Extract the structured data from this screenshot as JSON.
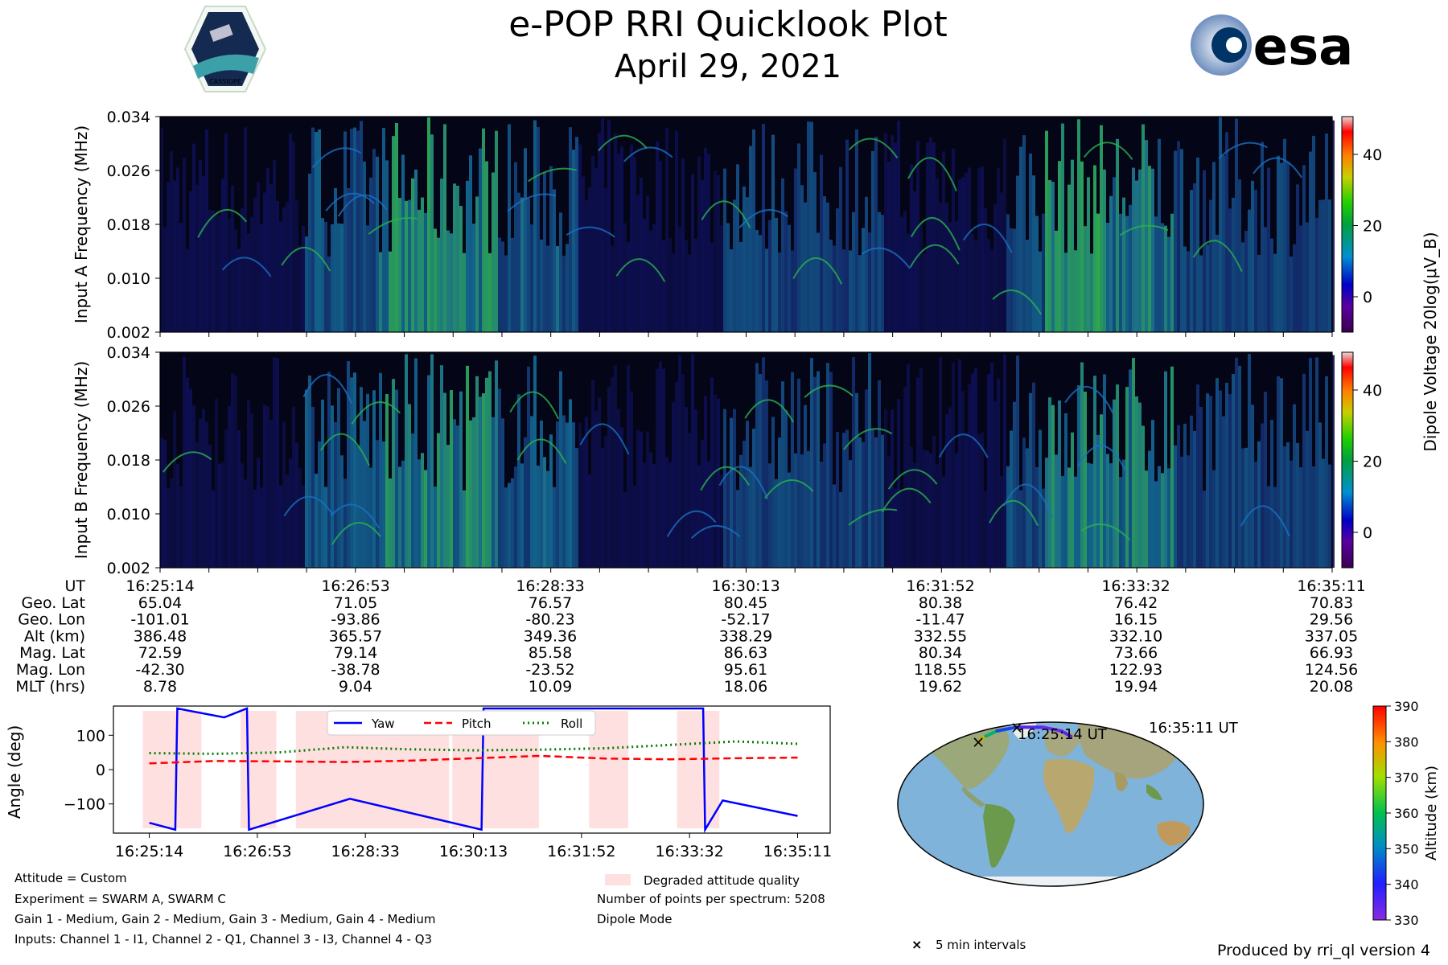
{
  "header": {
    "title": "e-POP RRI Quicklook Plot",
    "date": "April 29, 2021",
    "left_logo_text": "CASSIOPE",
    "right_logo_text": "esa"
  },
  "spectrogram": {
    "ylabel_a": "Input A Frequency (MHz)",
    "ylabel_b": "Input B Frequency (MHz)",
    "freq_ticks": [
      "0.034",
      "0.026",
      "0.018",
      "0.010",
      "0.002"
    ],
    "colorbar_ticks": [
      "40",
      "20",
      "0"
    ],
    "colorbar_label": "Dipole Voltage 20log(μV_B)"
  },
  "ephemeris": {
    "row_labels": [
      "UT",
      "Geo. Lat",
      "Geo. Lon",
      "Alt (km)",
      "Mag. Lat",
      "Mag. Lon",
      "MLT (hrs)"
    ],
    "columns": [
      [
        "16:25:14",
        "65.04",
        "-101.01",
        "386.48",
        "72.59",
        "-42.30",
        "8.78"
      ],
      [
        "16:26:53",
        "71.05",
        "-93.86",
        "365.57",
        "79.14",
        "-38.78",
        "9.04"
      ],
      [
        "16:28:33",
        "76.57",
        "-80.23",
        "349.36",
        "85.58",
        "-23.52",
        "10.09"
      ],
      [
        "16:30:13",
        "80.45",
        "-52.17",
        "338.29",
        "86.63",
        "95.61",
        "18.06"
      ],
      [
        "16:31:52",
        "80.38",
        "-11.47",
        "332.55",
        "80.34",
        "118.55",
        "19.62"
      ],
      [
        "16:33:32",
        "76.42",
        "16.15",
        "332.10",
        "73.66",
        "122.93",
        "19.94"
      ],
      [
        "16:35:11",
        "70.83",
        "29.56",
        "337.05",
        "66.93",
        "124.56",
        "20.08"
      ]
    ]
  },
  "chart_data": [
    {
      "type": "line",
      "title": "",
      "xlabel": "",
      "ylabel": "Angle (deg)",
      "categories": [
        "16:25:14",
        "16:26:53",
        "16:28:33",
        "16:30:13",
        "16:31:52",
        "16:33:32",
        "16:35:11"
      ],
      "x_unit": "minutes since 16:25:14",
      "xlim": [
        0,
        9.95
      ],
      "ylim": [
        -185,
        185
      ],
      "yticks": [
        "100",
        "0",
        "−100"
      ],
      "series": [
        {
          "name": "Yaw",
          "color": "#0000ff",
          "style": "solid",
          "x": [
            0,
            0.4,
            0.43,
            1.15,
            1.5,
            1.53,
            3.08,
            5.1,
            5.13,
            8.5,
            8.53,
            8.8,
            9.95
          ],
          "values": [
            -155,
            -175,
            178,
            152,
            178,
            -175,
            -85,
            -175,
            178,
            178,
            -175,
            -90,
            -135
          ]
        },
        {
          "name": "Pitch",
          "color": "#ff0000",
          "style": "dashed",
          "x": [
            0,
            1.0,
            2.0,
            3.0,
            4.0,
            5.0,
            6.0,
            7.0,
            8.0,
            9.0,
            9.95
          ],
          "values": [
            18,
            25,
            24,
            22,
            26,
            33,
            40,
            32,
            30,
            33,
            35
          ]
        },
        {
          "name": "Roll",
          "color": "#007f00",
          "style": "dotted",
          "x": [
            0,
            1.0,
            2.0,
            3.0,
            4.0,
            5.0,
            6.0,
            7.0,
            8.0,
            9.0,
            9.95
          ],
          "values": [
            48,
            46,
            50,
            65,
            59,
            56,
            58,
            62,
            72,
            82,
            75
          ]
        }
      ],
      "degraded_intervals": [
        [
          -0.1,
          0.8
        ],
        [
          1.4,
          1.95
        ],
        [
          2.25,
          4.6
        ],
        [
          4.65,
          5.98
        ],
        [
          6.75,
          7.35
        ],
        [
          8.1,
          8.75
        ]
      ],
      "degraded_color": "#ffe0e0"
    },
    {
      "type": "scatter",
      "title": "",
      "xlabel": "",
      "ylabel": "Altitude (km)",
      "colorbar_range": [
        330,
        390
      ],
      "colorbar_ticks": [
        "390",
        "380",
        "370",
        "360",
        "350",
        "340",
        "330"
      ],
      "track_start_label": "16:25:14 UT",
      "track_end_label": "16:35:11 UT",
      "track": [
        {
          "lon": -101.01,
          "lat": 65.04,
          "alt": 386.48
        },
        {
          "lon": -93.86,
          "lat": 71.05,
          "alt": 365.57
        },
        {
          "lon": -80.23,
          "lat": 76.57,
          "alt": 349.36
        },
        {
          "lon": -52.17,
          "lat": 80.45,
          "alt": 338.29
        },
        {
          "lon": -11.47,
          "lat": 80.38,
          "alt": 332.55
        },
        {
          "lon": 16.15,
          "lat": 76.42,
          "alt": 332.1
        },
        {
          "lon": 29.56,
          "lat": 70.83,
          "alt": 337.05
        }
      ],
      "marker_points": [
        {
          "lon": -101.01,
          "lat": 65.04
        },
        {
          "lon": -52.17,
          "lat": 80.45
        }
      ]
    }
  ],
  "footer": {
    "attitude": "Attitude = Custom",
    "experiment": "Experiment = SWARM A, SWARM C",
    "gains": "Gain 1 - Medium, Gain 2 - Medium, Gain 3 - Medium, Gain 4 - Medium",
    "inputs": "Inputs: Channel 1 - I1, Channel 2 - Q1, Channel 3 - I3, Channel 4 - Q3",
    "degraded_legend": "Degraded attitude quality",
    "points_per_spectrum": "Number of points per spectrum: 5208",
    "mode": "Dipole Mode",
    "interval_legend": "5 min intervals",
    "produced_by": "Produced by rri_ql version 4"
  }
}
